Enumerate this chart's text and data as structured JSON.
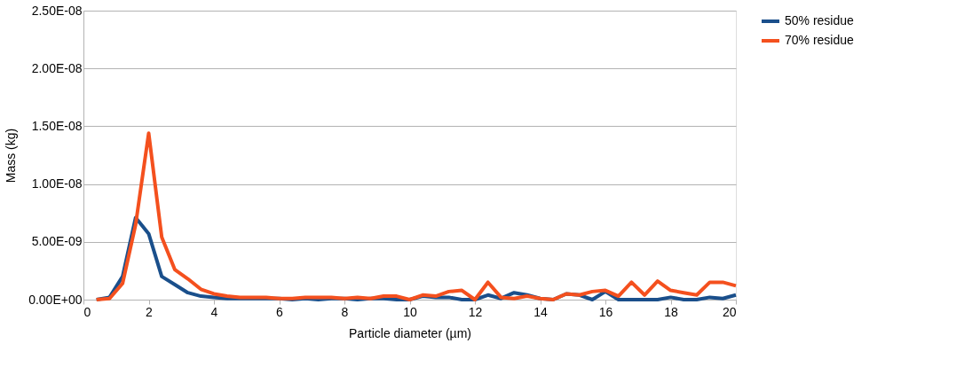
{
  "chart_data": {
    "type": "line",
    "xlabel": "Particle diameter (µm)",
    "ylabel": "Mass (kg)",
    "x": [
      0.4,
      0.8,
      1.2,
      1.6,
      2.0,
      2.4,
      2.8,
      3.2,
      3.6,
      4.0,
      4.4,
      4.8,
      5.2,
      5.6,
      6.0,
      6.4,
      6.8,
      7.2,
      7.6,
      8.0,
      8.4,
      8.8,
      9.2,
      9.6,
      10.0,
      10.4,
      10.8,
      11.2,
      11.6,
      12.0,
      12.4,
      12.8,
      13.2,
      13.6,
      14.0,
      14.4,
      14.8,
      15.2,
      15.6,
      16.0,
      16.4,
      16.8,
      17.2,
      17.6,
      18.0,
      18.4,
      18.8,
      19.2,
      19.6,
      20.0
    ],
    "series": [
      {
        "name": "50% residue",
        "color": "#1a4f8b",
        "values": [
          0,
          2e-10,
          2e-09,
          7.1e-09,
          5.7e-09,
          2e-09,
          1.3e-09,
          6e-10,
          3e-10,
          2e-10,
          1e-10,
          1e-10,
          1e-10,
          1e-10,
          1e-10,
          0,
          1e-10,
          0,
          1e-10,
          1e-10,
          0,
          1e-10,
          1e-10,
          0,
          0,
          3e-10,
          2e-10,
          2e-10,
          0,
          0,
          4e-10,
          1e-10,
          6e-10,
          4e-10,
          1e-10,
          0,
          5e-10,
          4e-10,
          0,
          7e-10,
          0,
          0,
          0,
          0,
          2e-10,
          0,
          0,
          2e-10,
          1e-10,
          4e-10
        ]
      },
      {
        "name": "70% residue",
        "color": "#f4501e",
        "values": [
          0,
          1e-10,
          1.4e-09,
          6.5e-09,
          1.44e-08,
          5.4e-09,
          2.6e-09,
          1.8e-09,
          9e-10,
          5e-10,
          3e-10,
          2e-10,
          2e-10,
          2e-10,
          1e-10,
          1e-10,
          2e-10,
          2e-10,
          2e-10,
          1e-10,
          2e-10,
          1e-10,
          3e-10,
          3e-10,
          0,
          4e-10,
          3e-10,
          7e-10,
          8e-10,
          0,
          1.5e-09,
          2e-10,
          1e-10,
          3e-10,
          1e-10,
          0,
          5e-10,
          4e-10,
          7e-10,
          8e-10,
          3e-10,
          1.5e-09,
          4e-10,
          1.6e-09,
          8e-10,
          6e-10,
          4e-10,
          1.5e-09,
          1.5e-09,
          1.2e-09
        ]
      }
    ],
    "xlim": [
      0,
      20
    ],
    "xticks": [
      0,
      2,
      4,
      6,
      8,
      10,
      12,
      14,
      16,
      18,
      20
    ],
    "ylim": [
      0,
      2.5e-08
    ],
    "yticks": [
      {
        "value": 0,
        "label": "0.00E+00"
      },
      {
        "value": 5e-09,
        "label": "5.00E-09"
      },
      {
        "value": 1e-08,
        "label": "1.00E-08"
      },
      {
        "value": 1.5e-08,
        "label": "1.50E-08"
      },
      {
        "value": 2e-08,
        "label": "2.00E-08"
      },
      {
        "value": 2.5e-08,
        "label": "2.50E-08"
      }
    ],
    "grid": "y",
    "legend": "right",
    "line_style": "solid",
    "marker": "none"
  }
}
